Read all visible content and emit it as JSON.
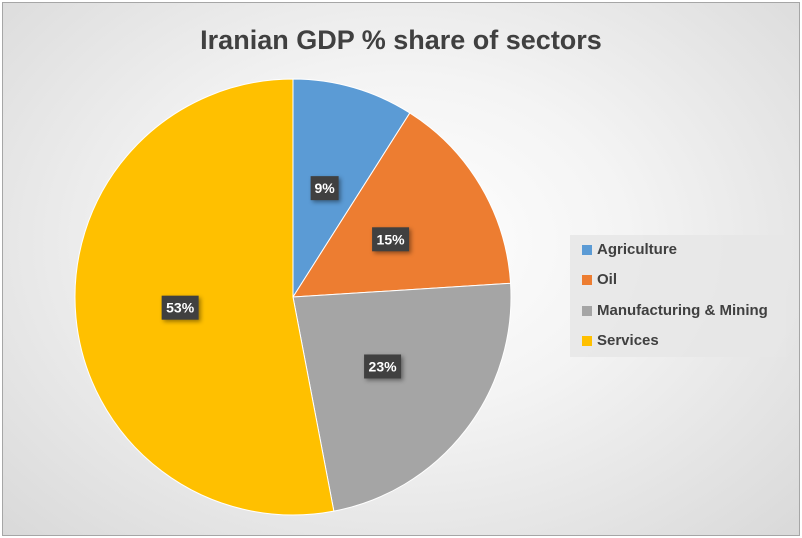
{
  "chart_data": {
    "type": "pie",
    "title": "Iranian GDP % share of sectors",
    "categories": [
      "Agriculture",
      "Oil",
      "Manufacturing & Mining",
      "Services"
    ],
    "values": [
      9,
      15,
      23,
      53
    ],
    "labels": [
      "9%",
      "15%",
      "23%",
      "53%"
    ],
    "colors": [
      "#5b9bd5",
      "#ed7d31",
      "#a5a5a5",
      "#ffc000"
    ],
    "start_angle": "top, clockwise",
    "legend_position": "right"
  }
}
